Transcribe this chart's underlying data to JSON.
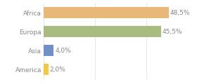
{
  "categories": [
    "America",
    "Asia",
    "Europa",
    "Africa"
  ],
  "values": [
    2.0,
    4.0,
    45.5,
    48.5
  ],
  "labels": [
    "2,0%",
    "4,0%",
    "45,5%",
    "48,5%"
  ],
  "bar_colors": [
    "#f5c842",
    "#7090c8",
    "#a8bc80",
    "#e8b87a"
  ],
  "xlim": [
    0,
    58
  ],
  "background_color": "#ffffff",
  "label_fontsize": 6.5,
  "tick_fontsize": 6.5,
  "bar_height": 0.6,
  "text_color": "#888888",
  "grid_color": "#dddddd"
}
